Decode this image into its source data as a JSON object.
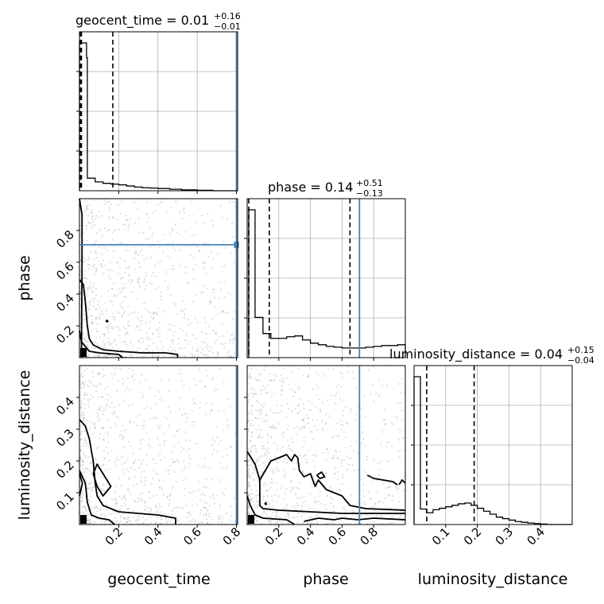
{
  "colors": {
    "truth": "#4682b4",
    "grid": "#b0b0b0",
    "points": "#8c8c8c",
    "ink": "#000000"
  },
  "chart_data": {
    "type": "corner",
    "parameters": [
      "geocent_time",
      "phase",
      "luminosity_distance"
    ],
    "titles": [
      {
        "text": "geocent_time = 0.01",
        "sup": "+0.16",
        "sub": "−0.01"
      },
      {
        "text": "phase = 0.14",
        "sup": "+0.51",
        "sub": "−0.13"
      },
      {
        "text": "luminosity_distance = 0.04",
        "sup": "+0.15",
        "sub": "−0.04"
      }
    ],
    "axis_labels": {
      "x": [
        "geocent_time",
        "phase",
        "luminosity_distance"
      ],
      "y": [
        "phase",
        "luminosity_distance"
      ]
    },
    "ranges": {
      "geocent_time": [
        0.0,
        0.806
      ],
      "phase": [
        0.0,
        1.0
      ],
      "luminosity_distance": [
        0.0,
        0.5
      ]
    },
    "ticks": {
      "geocent_time": [
        "0.2",
        "0.4",
        "0.6",
        "0.8"
      ],
      "phase": [
        "0.2",
        "0.4",
        "0.6",
        "0.8"
      ],
      "luminosity_distance": [
        "0.1",
        "0.2",
        "0.3",
        "0.4"
      ]
    },
    "truths": {
      "geocent_time": 0.8,
      "phase": 0.71,
      "luminosity_distance": null
    },
    "quantile_lines": {
      "geocent_time": [
        0.005,
        0.01,
        0.17
      ],
      "phase": [
        0.01,
        0.14,
        0.65
      ],
      "luminosity_distance": [
        0.0,
        0.04,
        0.19
      ]
    },
    "histograms": {
      "geocent_time": {
        "edges": [
          0.0,
          0.036,
          0.04,
          0.08,
          0.12,
          0.16,
          0.2,
          0.24,
          0.28,
          0.32,
          0.36,
          0.4,
          0.46,
          0.52,
          0.6,
          0.68,
          0.806
        ],
        "counts": [
          1.0,
          0.9,
          0.085,
          0.06,
          0.05,
          0.045,
          0.04,
          0.032,
          0.025,
          0.02,
          0.018,
          0.015,
          0.01,
          0.006,
          0.003,
          0.0
        ]
      },
      "phase": {
        "edges": [
          0.0,
          0.01,
          0.05,
          0.1,
          0.15,
          0.2,
          0.25,
          0.3,
          0.35,
          0.4,
          0.45,
          0.5,
          0.55,
          0.6,
          0.65,
          0.7,
          0.75,
          0.8,
          0.85,
          0.9,
          0.95,
          1.0
        ],
        "counts": [
          0.0,
          0.92,
          0.25,
          0.15,
          0.12,
          0.12,
          0.13,
          0.135,
          0.11,
          0.09,
          0.08,
          0.07,
          0.065,
          0.06,
          0.06,
          0.06,
          0.065,
          0.07,
          0.075,
          0.075,
          0.08
        ]
      },
      "luminosity_distance": {
        "edges": [
          0.0,
          0.02,
          0.04,
          0.06,
          0.08,
          0.1,
          0.12,
          0.14,
          0.16,
          0.18,
          0.2,
          0.22,
          0.24,
          0.26,
          0.28,
          0.3,
          0.32,
          0.34,
          0.36,
          0.38,
          0.4,
          0.42,
          0.5
        ],
        "counts": [
          1.0,
          0.105,
          0.08,
          0.1,
          0.11,
          0.12,
          0.13,
          0.14,
          0.145,
          0.13,
          0.11,
          0.09,
          0.07,
          0.05,
          0.04,
          0.03,
          0.02,
          0.015,
          0.01,
          0.006,
          0.003,
          0.0
        ]
      }
    },
    "contours": {
      "phase_vs_geocent_time": [
        [
          [
            0.0,
            0.49
          ],
          [
            0.02,
            0.46
          ],
          [
            0.03,
            0.35
          ],
          [
            0.04,
            0.2
          ],
          [
            0.05,
            0.12
          ],
          [
            0.07,
            0.08
          ],
          [
            0.12,
            0.05
          ],
          [
            0.2,
            0.04
          ],
          [
            0.32,
            0.03
          ],
          [
            0.44,
            0.03
          ],
          [
            0.5,
            0.02
          ],
          [
            0.5,
            0.0
          ]
        ],
        [
          [
            0.0,
            0.17
          ],
          [
            0.01,
            0.1
          ],
          [
            0.03,
            0.07
          ],
          [
            0.05,
            0.04
          ],
          [
            0.1,
            0.03
          ],
          [
            0.2,
            0.02
          ],
          [
            0.22,
            0.0
          ]
        ],
        [
          [
            0.0,
            1.0
          ],
          [
            0.013,
            0.9
          ],
          [
            0.013,
            0.6
          ],
          [
            0.01,
            0.0
          ]
        ],
        [
          [
            0.135,
            0.225
          ],
          [
            0.14,
            0.235
          ],
          [
            0.145,
            0.228
          ],
          [
            0.135,
            0.225
          ]
        ]
      ],
      "luminosity_distance_vs_geocent_time": [
        [
          [
            0.0,
            0.33
          ],
          [
            0.03,
            0.31
          ],
          [
            0.05,
            0.27
          ],
          [
            0.07,
            0.2
          ],
          [
            0.08,
            0.13
          ],
          [
            0.09,
            0.09
          ],
          [
            0.12,
            0.06
          ],
          [
            0.2,
            0.04
          ],
          [
            0.3,
            0.035
          ],
          [
            0.4,
            0.03
          ],
          [
            0.49,
            0.02
          ],
          [
            0.49,
            0.0
          ]
        ],
        [
          [
            0.0,
            0.17
          ],
          [
            0.03,
            0.13
          ],
          [
            0.04,
            0.07
          ],
          [
            0.06,
            0.03
          ],
          [
            0.1,
            0.02
          ],
          [
            0.15,
            0.015
          ],
          [
            0.18,
            0.0
          ]
        ],
        [
          [
            0.07,
            0.16
          ],
          [
            0.09,
            0.19
          ],
          [
            0.11,
            0.17
          ],
          [
            0.16,
            0.12
          ],
          [
            0.12,
            0.09
          ],
          [
            0.09,
            0.12
          ],
          [
            0.07,
            0.16
          ]
        ],
        [
          [
            0.0,
            0.16
          ],
          [
            0.015,
            0.13
          ],
          [
            0.0,
            0.09
          ]
        ]
      ],
      "luminosity_distance_vs_phase": [
        [
          [
            0.0,
            0.23
          ],
          [
            0.05,
            0.19
          ],
          [
            0.08,
            0.14
          ],
          [
            0.08,
            0.06
          ],
          [
            0.1,
            0.05
          ],
          [
            0.2,
            0.045
          ],
          [
            0.4,
            0.04
          ],
          [
            0.6,
            0.035
          ],
          [
            1.0,
            0.035
          ]
        ],
        [
          [
            0.0,
            0.09
          ],
          [
            0.02,
            0.06
          ],
          [
            0.05,
            0.03
          ],
          [
            0.1,
            0.02
          ],
          [
            0.25,
            0.015
          ],
          [
            0.3,
            0.0
          ]
        ],
        [
          [
            0.08,
            0.14
          ],
          [
            0.15,
            0.2
          ],
          [
            0.2,
            0.21
          ],
          [
            0.25,
            0.22
          ],
          [
            0.28,
            0.2
          ],
          [
            0.3,
            0.22
          ],
          [
            0.32,
            0.21
          ],
          [
            0.33,
            0.17
          ],
          [
            0.36,
            0.15
          ],
          [
            0.4,
            0.16
          ],
          [
            0.43,
            0.12
          ],
          [
            0.45,
            0.14
          ],
          [
            0.5,
            0.11
          ],
          [
            0.6,
            0.09
          ],
          [
            0.65,
            0.06
          ],
          [
            0.75,
            0.05
          ],
          [
            1.0,
            0.045
          ]
        ],
        [
          [
            0.36,
            0.01
          ],
          [
            0.45,
            0.02
          ],
          [
            0.55,
            0.015
          ],
          [
            0.6,
            0.02
          ],
          [
            0.7,
            0.015
          ],
          [
            0.8,
            0.02
          ],
          [
            1.0,
            0.015
          ]
        ],
        [
          [
            0.44,
            0.155
          ],
          [
            0.47,
            0.165
          ],
          [
            0.49,
            0.15
          ],
          [
            0.46,
            0.145
          ],
          [
            0.44,
            0.155
          ]
        ],
        [
          [
            0.76,
            0.155
          ],
          [
            0.8,
            0.145
          ],
          [
            0.86,
            0.14
          ],
          [
            0.92,
            0.135
          ],
          [
            0.95,
            0.125
          ]
        ],
        [
          [
            0.96,
            0.125
          ],
          [
            0.98,
            0.14
          ],
          [
            1.0,
            0.13
          ]
        ],
        [
          [
            0.11,
            0.065
          ],
          [
            0.12,
            0.068
          ],
          [
            0.12,
            0.063
          ],
          [
            0.11,
            0.065
          ]
        ]
      ]
    }
  }
}
